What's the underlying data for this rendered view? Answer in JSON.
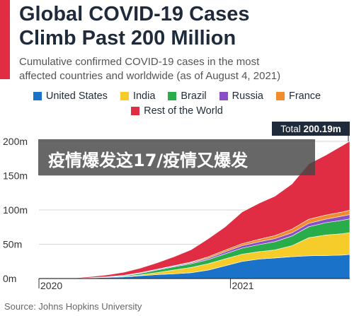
{
  "header": {
    "title_lines": [
      "Global COVID-19 Cases",
      "Climb Past 200 Million"
    ],
    "subtitle_lines": [
      "Cumulative confirmed COVID-19 cases in the most",
      "affected countries and worldwide (as of August 4, 2021)"
    ]
  },
  "overlay": {
    "text": "疫情爆发这17/疫情又爆发"
  },
  "source": "Source: Johns Hopkins University",
  "chart_data": {
    "type": "area",
    "stacked": true,
    "total_label": {
      "prefix": "Total",
      "value": "200.19m"
    },
    "x": [
      "2020-01-22",
      "2020-02-22",
      "2020-03-22",
      "2020-04-22",
      "2020-05-22",
      "2020-06-22",
      "2020-07-22",
      "2020-08-22",
      "2020-09-22",
      "2020-10-22",
      "2020-11-22",
      "2020-12-22",
      "2021-01-22",
      "2021-02-22",
      "2021-03-22",
      "2021-04-22",
      "2021-05-22",
      "2021-06-22",
      "2021-07-22",
      "2021-08-04"
    ],
    "series": [
      {
        "name": "United States",
        "color": "#1a73c8",
        "values": [
          0,
          0,
          0.03,
          0.85,
          1.65,
          2.3,
          4.0,
          5.7,
          6.95,
          8.5,
          12.3,
          18.5,
          25.0,
          28.3,
          30.0,
          31.9,
          33.2,
          33.6,
          34.2,
          35.2
        ]
      },
      {
        "name": "India",
        "color": "#f5cc2a",
        "values": [
          0,
          0,
          0,
          0.02,
          0.12,
          0.43,
          1.24,
          3.04,
          5.65,
          7.7,
          9.2,
          10.1,
          10.6,
          11.0,
          11.65,
          16.0,
          26.3,
          29.9,
          31.3,
          31.8
        ]
      },
      {
        "name": "Brazil",
        "color": "#28ad4a",
        "values": [
          0,
          0,
          0,
          0.04,
          0.31,
          1.1,
          2.2,
          3.6,
          4.6,
          5.3,
          6.1,
          7.3,
          8.7,
          10.2,
          12.1,
          14.2,
          16.0,
          17.9,
          19.5,
          20.0
        ]
      },
      {
        "name": "Russia",
        "color": "#8a4fc6",
        "values": [
          0,
          0,
          0,
          0.06,
          0.33,
          0.6,
          0.79,
          0.95,
          1.12,
          1.45,
          2.1,
          2.9,
          3.6,
          4.2,
          4.45,
          4.7,
          4.97,
          5.35,
          6.1,
          6.35
        ]
      },
      {
        "name": "France",
        "color": "#f28b2a",
        "values": [
          0,
          0,
          0.02,
          0.16,
          0.18,
          0.2,
          0.22,
          0.28,
          0.5,
          1.05,
          2.15,
          2.5,
          3.0,
          3.6,
          4.4,
          5.4,
          5.9,
          5.8,
          6.0,
          6.3
        ]
      },
      {
        "name": "Rest of the World",
        "color": "#e12d44",
        "values": [
          0,
          0.08,
          0.27,
          1.4,
          2.51,
          4.37,
          6.55,
          9.43,
          13.18,
          18.0,
          26.15,
          33.7,
          46.1,
          52.7,
          57.4,
          65.8,
          80.63,
          87.45,
          96.9,
          100.54
        ]
      }
    ],
    "y_ticks": [
      "0m",
      "50m",
      "100m",
      "150m",
      "200m"
    ],
    "y_tick_values": [
      0,
      50,
      100,
      150,
      200
    ],
    "x_ticks": [
      {
        "label": "2020",
        "x": "2020-01-22"
      },
      {
        "label": "2021",
        "x": "2021-01-01"
      }
    ],
    "ylim": [
      0,
      200
    ],
    "xlim": [
      "2020-01-22",
      "2021-08-04"
    ],
    "grid": true,
    "legend_position": "top"
  }
}
